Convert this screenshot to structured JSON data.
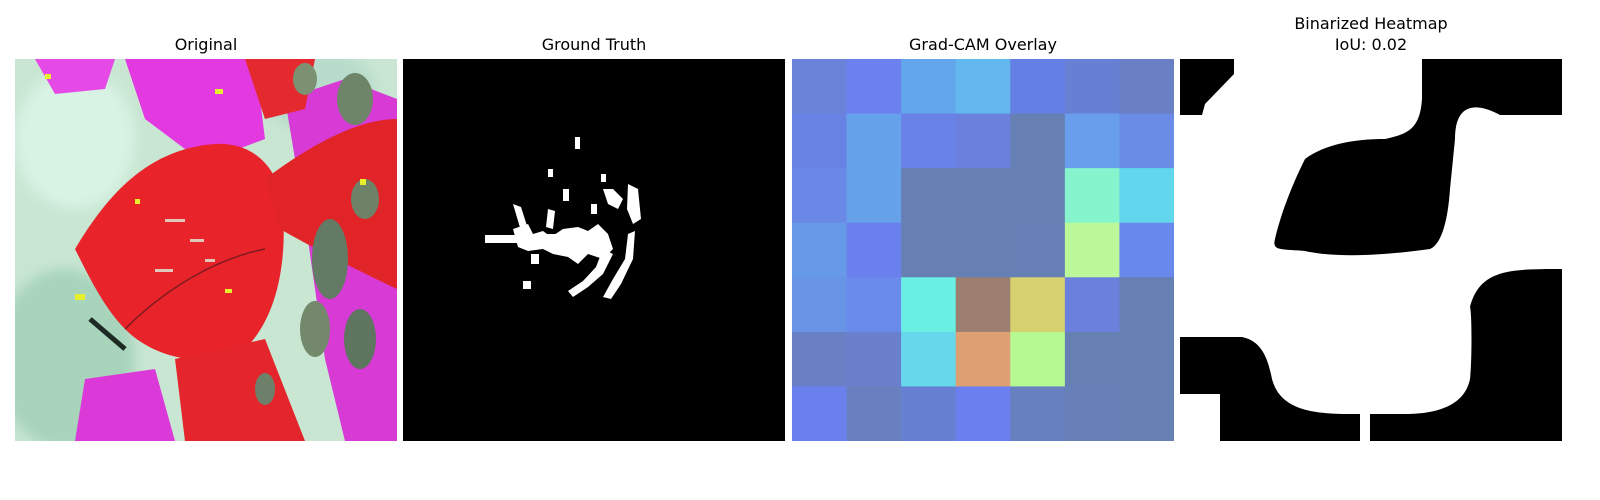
{
  "panels": [
    {
      "title": "Original"
    },
    {
      "title": "Ground Truth"
    },
    {
      "title": "Grad-CAM Overlay"
    },
    {
      "title": "Binarized Heatmap",
      "subtitle": "IoU: 0.02"
    }
  ],
  "gradcam_grid": [
    [
      "#6a82d8",
      "#6b82ee",
      "#64a6ec",
      "#62b8ef",
      "#6480e4",
      "#6680d4",
      "#6a80c4"
    ],
    [
      "#6882e4",
      "#66a2ec",
      "#6882e8",
      "#6a80dc",
      "#6680b4",
      "#689eec",
      "#6a8ce6"
    ],
    [
      "#6a88e6",
      "#66a2ea",
      "#6680b4",
      "#6680b4",
      "#6680b4",
      "#86f4cc",
      "#62d6ec"
    ],
    [
      "#669ae8",
      "#6a80ec",
      "#6680b4",
      "#6680b4",
      "#6680b6",
      "#baf89a",
      "#6888ec"
    ],
    [
      "#6894e6",
      "#6a8aec",
      "#6af0e2",
      "#9c7e70",
      "#d6d06e",
      "#6a80dc",
      "#6680b4"
    ],
    [
      "#6a80c4",
      "#6a80cc",
      "#66d8ec",
      "#dca072",
      "#b6f892",
      "#6680b4",
      "#6680b4"
    ],
    [
      "#6a80ec",
      "#6880c0",
      "#6880d2",
      "#6a80ee",
      "#6680c0",
      "#6880b8",
      "#6680b4"
    ]
  ]
}
